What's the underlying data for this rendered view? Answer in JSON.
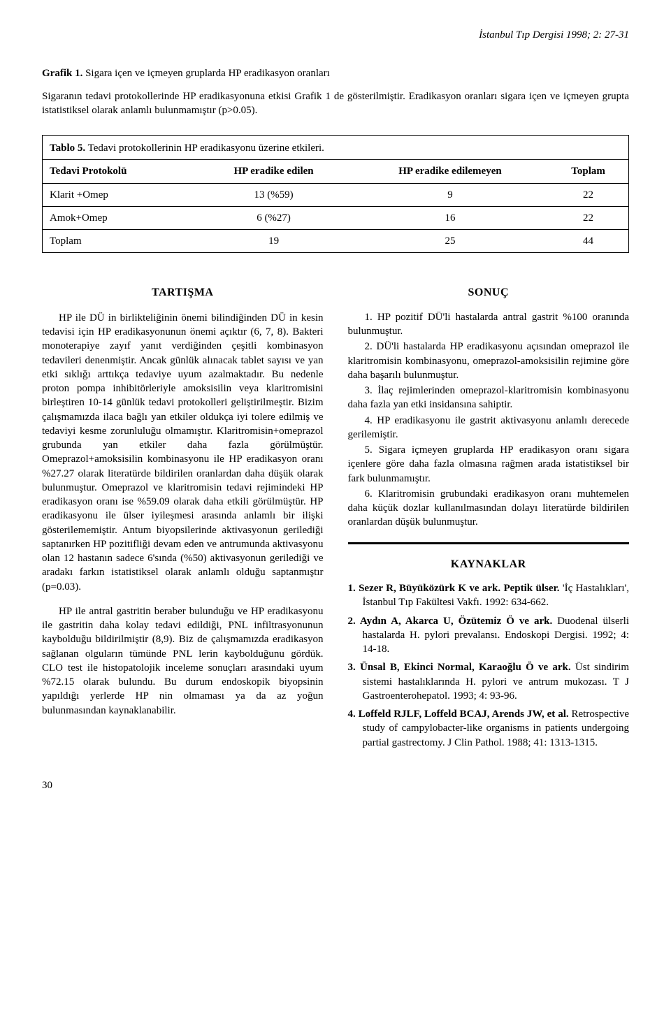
{
  "journal": "İstanbul Tıp Dergisi 1998; 2: 27-31",
  "figure": {
    "lead": "Grafik 1.",
    "title": " Sigara içen ve içmeyen gruplarda HP eradikasyon oranları",
    "caption": "Sigaranın tedavi protokollerinde HP eradikasyonuna etkisi Grafik 1 de gösterilmiştir. Eradikasyon oranları sigara içen ve içmeyen grupta istatistiksel olarak anlamlı bulunmamıştır (p>0.05)."
  },
  "table": {
    "lead": "Tablo 5.",
    "caption": " Tedavi protokollerinin HP eradikasyonu üzerine etkileri.",
    "columns": [
      "Tedavi Protokolü",
      "HP eradike edilen",
      "HP eradike edilemeyen",
      "Toplam"
    ],
    "rows": [
      [
        "Klarit +Omep",
        "13 (%59)",
        "9",
        "22"
      ],
      [
        "Amok+Omep",
        "6 (%27)",
        "16",
        "22"
      ],
      [
        "Toplam",
        "19",
        "25",
        "44"
      ]
    ]
  },
  "discussion": {
    "heading": "TARTIŞMA",
    "p1": "HP ile DÜ in birlikteliğinin önemi bilindiğinden DÜ in kesin tedavisi için HP eradikasyonunun önemi açıktır (6, 7, 8). Bakteri monoterapiye zayıf yanıt verdiğinden çeşitli kombinasyon tedavileri denenmiştir. Ancak günlük alınacak tablet sayısı ve yan etki sıklığı arttıkça tedaviye uyum azalmaktadır. Bu nedenle proton pompa inhibitörleriyle amoksisilin veya klaritromisini birleştiren 10-14 günlük tedavi protokolleri geliştirilmeştir. Bizim çalışmamızda ilaca bağlı yan etkiler oldukça iyi tolere edilmiş ve tedaviyi kesme zorunluluğu olmamıştır. Klaritromisin+omeprazol grubunda yan etkiler daha fazla görülmüştür. Omeprazol+amoksisilin kombinasyonu ile HP eradikasyon oranı %27.27 olarak literatürde bildirilen oranlardan daha düşük olarak bulunmuştur. Omeprazol ve klaritromisin tedavi rejimindeki HP eradikasyon oranı ise %59.09 olarak daha etkili görülmüştür. HP eradikasyonu ile ülser iyileşmesi arasında anlamlı bir ilişki gösterilememiştir. Antum biyopsilerinde aktivasyonun gerilediği saptanırken HP pozitifliği devam eden ve antrumunda aktivasyonu olan 12 hastanın sadece 6'sında (%50) aktivasyonun gerilediği ve aradakı farkın istatistiksel olarak anlamlı olduğu saptanmıştır (p=0.03).",
    "p2": "HP ile antral gastritin beraber bulunduğu ve HP eradikasyonu ile gastritin daha kolay tedavi edildiği, PNL infiltrasyonunun kaybolduğu bildirilmiştir (8,9). Biz de çalışmamızda eradikasyon sağlanan olguların tümünde PNL lerin kaybolduğunu gördük. CLO test ile histopatolojik inceleme sonuçları arasındaki uyum %72.15 olarak bulundu. Bu durum endoskopik biyopsinin yapıldığı yerlerde HP nin olmaması ya da az yoğun bulunmasından kaynaklanabilir."
  },
  "conclusion": {
    "heading": "SONUÇ",
    "items": [
      "1. HP pozitif DÜ'li hastalarda antral gastrit %100 oranında bulunmuştur.",
      "2. DÜ'li hastalarda HP eradikasyonu açısından omeprazol ile klaritromisin kombinasyonu, omeprazol-amoksisilin rejimine göre daha başarılı bulunmuştur.",
      "3. İlaç rejimlerinden omeprazol-klaritromisin kombinasyonu daha fazla yan etki insidansına sahiptir.",
      "4. HP eradikasyonu ile gastrit aktivasyonu anlamlı derecede gerilemiştir.",
      "5. Sigara içmeyen gruplarda HP eradikasyon oranı sigara içenlere göre daha fazla olmasına rağmen arada istatistiksel bir fark bulunmamıştır.",
      "6. Klaritromisin grubundaki eradikasyon oranı muhtemelen daha küçük dozlar kullanılmasından dolayı literatürde bildirilen oranlardan düşük bulunmuştur."
    ]
  },
  "references": {
    "heading": "KAYNAKLAR",
    "items": [
      {
        "lead": "1. Sezer R, Büyüközürk K ve ark. Peptik ülser.",
        "rest": " 'İç Hastalıkları', İstanbul Tıp Fakültesi Vakfı. 1992: 634-662."
      },
      {
        "lead": "2. Aydın A, Akarca U, Özütemiz Ö ve ark.",
        "rest": " Duodenal ülserli hastalarda H. pylori prevalansı. Endoskopi Dergisi. 1992; 4: 14-18."
      },
      {
        "lead": "3. Ünsal B, Ekinci Normal, Karaoğlu Ö ve ark.",
        "rest": " Üst sindirim sistemi hastalıklarında H. pylori ve antrum mukozası. T J Gastroenterohepatol. 1993; 4: 93-96."
      },
      {
        "lead": "4. Loffeld RJLF, Loffeld BCAJ, Arends JW, et al.",
        "rest": " Retrospective study of campylobacter-like organisms in patients undergoing partial gastrectomy. J Clin Pathol. 1988; 41: 1313-1315."
      }
    ]
  },
  "pagenum": "30"
}
